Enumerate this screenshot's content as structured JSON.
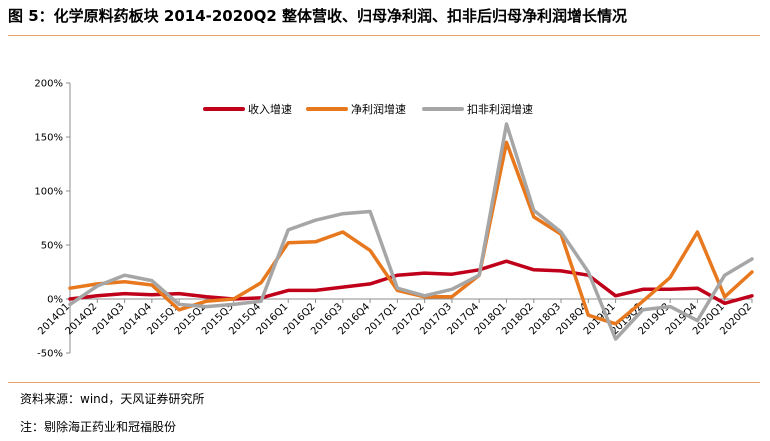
{
  "header": {
    "title": "图 5：化学原料药板块 2014-2020Q2 整体营收、归母净利润、扣非后归母净利润增长情况"
  },
  "footer": {
    "source": "资料来源：wind，天风证券研究所",
    "note": "注：剔除海正药业和冠福股份"
  },
  "chart_data": {
    "type": "line",
    "title": "",
    "xlabel": "",
    "ylabel": "",
    "y_unit": "%",
    "ylim": [
      -50,
      200
    ],
    "yticks": [
      -50,
      0,
      50,
      100,
      150,
      200
    ],
    "ytick_labels": [
      "-50%",
      "0%",
      "50%",
      "100%",
      "150%",
      "200%"
    ],
    "grid": false,
    "legend_position": "top",
    "categories": [
      "2014Q1",
      "2014Q2",
      "2014Q3",
      "2014Q4",
      "2015Q1",
      "2015Q2",
      "2015Q3",
      "2015Q4",
      "2016Q1",
      "2016Q2",
      "2016Q3",
      "2016Q4",
      "2017Q1",
      "2017Q2",
      "2017Q3",
      "2017Q4",
      "2018Q1",
      "2018Q2",
      "2018Q3",
      "2018Q4",
      "2019Q1",
      "2019Q2",
      "2019Q3",
      "2019Q4",
      "2020Q1",
      "2020Q2"
    ],
    "series": [
      {
        "name": "收入增速",
        "color": "#C0001A",
        "values": [
          0,
          3,
          5,
          4,
          5,
          2,
          0,
          1,
          8,
          8,
          11,
          14,
          22,
          24,
          23,
          27,
          35,
          27,
          26,
          22,
          3,
          9,
          9,
          10,
          -4,
          3
        ]
      },
      {
        "name": "净利润增速",
        "color": "#E8781E",
        "values": [
          10,
          14,
          16,
          13,
          -10,
          -2,
          0,
          15,
          52,
          53,
          62,
          45,
          8,
          2,
          2,
          22,
          145,
          76,
          60,
          -15,
          -23,
          -2,
          20,
          62,
          2,
          25
        ]
      },
      {
        "name": "扣非利润增速",
        "color": "#A6A6A6",
        "values": [
          -5,
          12,
          22,
          17,
          -5,
          -7,
          -5,
          -2,
          64,
          73,
          79,
          81,
          10,
          3,
          9,
          22,
          162,
          82,
          62,
          25,
          -37,
          -10,
          -7,
          -20,
          22,
          37
        ]
      }
    ]
  }
}
